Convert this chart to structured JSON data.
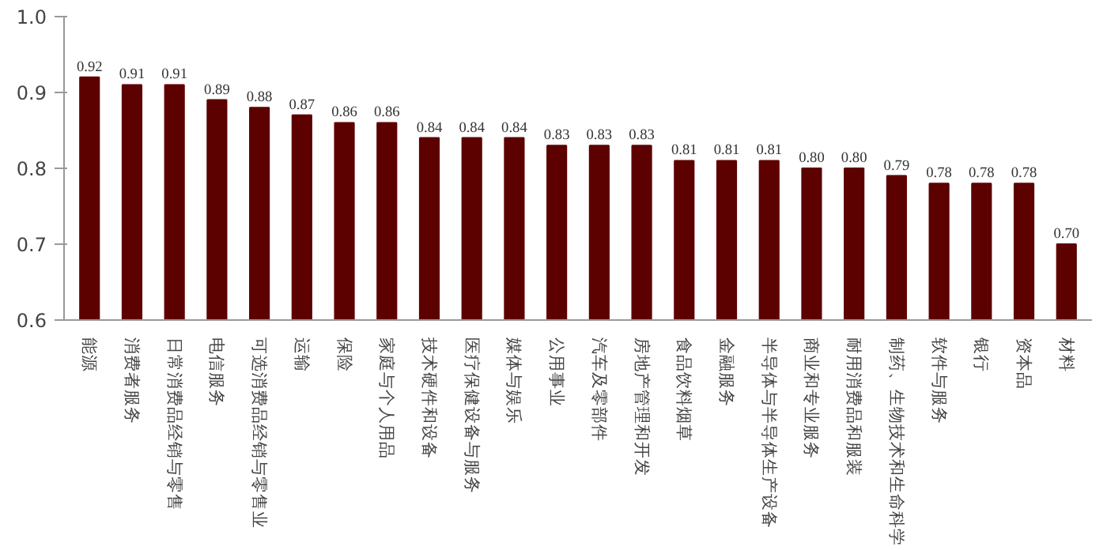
{
  "chart_data": {
    "type": "bar",
    "categories": [
      "能源",
      "消费者服务",
      "日常消费品经销与零售",
      "电信服务",
      "可选消费品经销与零售业",
      "运输",
      "保险",
      "家庭与个人用品",
      "技术硬件和设备",
      "医疗保健设备与服务",
      "媒体与娱乐",
      "公用事业",
      "汽车及零部件",
      "房地产管理和开发",
      "食品饮料烟草",
      "金融服务",
      "半导体与半导体生产设备",
      "商业和专业服务",
      "耐用消费品和服装",
      "制药、生物技术和生命科学",
      "软件与服务",
      "银行",
      "资本品",
      "材料"
    ],
    "values": [
      0.92,
      0.91,
      0.91,
      0.89,
      0.88,
      0.87,
      0.86,
      0.86,
      0.84,
      0.84,
      0.84,
      0.83,
      0.83,
      0.83,
      0.81,
      0.81,
      0.81,
      0.8,
      0.8,
      0.79,
      0.78,
      0.78,
      0.78,
      0.7
    ],
    "color": "#5c0000",
    "ylim": [
      0.6,
      1.0
    ],
    "yticks": [
      {
        "value": 0.6,
        "label": "0.6"
      },
      {
        "value": 0.7,
        "label": "0.7"
      },
      {
        "value": 0.8,
        "label": "0.8"
      },
      {
        "value": 0.9,
        "label": "0.9"
      },
      {
        "value": 1.0,
        "label": "1.0"
      }
    ],
    "value_labels": [
      "0.92",
      "0.91",
      "0.91",
      "0.89",
      "0.88",
      "0.87",
      "0.86",
      "0.86",
      "0.84",
      "0.84",
      "0.84",
      "0.83",
      "0.83",
      "0.83",
      "0.81",
      "0.81",
      "0.81",
      "0.80",
      "0.80",
      "0.79",
      "0.78",
      "0.78",
      "0.78",
      "0.70"
    ],
    "grid": false
  }
}
